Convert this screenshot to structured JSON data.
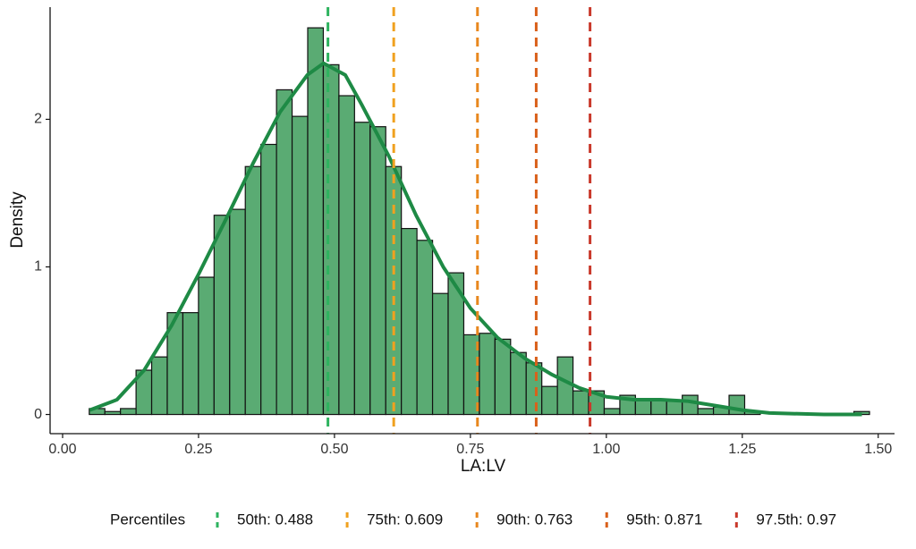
{
  "chart_data": {
    "type": "histogram",
    "x_label": "LA:LV",
    "y_label": "Density",
    "color": "#5aab73",
    "edge_color": "#111111",
    "bins": [
      0.049,
      0.0777,
      0.1064,
      0.1351,
      0.1638,
      0.1925,
      0.2212,
      0.2499,
      0.2786,
      0.3073,
      0.336,
      0.3647,
      0.3934,
      0.4221,
      0.4508,
      0.4795,
      0.5082,
      0.5369,
      0.5656,
      0.5943,
      0.623,
      0.6517,
      0.6804,
      0.7091,
      0.7378,
      0.7665,
      0.7952,
      0.8239,
      0.8526,
      0.8813,
      0.91,
      0.9387,
      0.9674,
      0.9961,
      1.0248,
      1.0535,
      1.0822,
      1.1109,
      1.1396,
      1.1683,
      1.197,
      1.2257,
      1.2544,
      1.2831,
      1.3118,
      1.3405,
      1.3692,
      1.3979,
      1.4266,
      1.4553,
      1.484
    ],
    "values": [
      0.04,
      0.02,
      0.04,
      0.3,
      0.39,
      0.69,
      0.69,
      0.93,
      1.35,
      1.39,
      1.68,
      1.83,
      2.2,
      2.02,
      2.62,
      2.37,
      2.16,
      1.98,
      1.95,
      1.68,
      1.26,
      1.18,
      0.82,
      0.96,
      0.54,
      0.55,
      0.51,
      0.42,
      0.35,
      0.19,
      0.39,
      0.16,
      0.16,
      0.04,
      0.13,
      0.1,
      0.1,
      0.09,
      0.13,
      0.04,
      0.05,
      0.13,
      0.02,
      0,
      0,
      0,
      0,
      0,
      0,
      0.02
    ],
    "density_curve": {
      "color": "#1e8a45",
      "x": [
        0.05,
        0.1,
        0.15,
        0.2,
        0.25,
        0.3,
        0.35,
        0.4,
        0.45,
        0.48,
        0.52,
        0.55,
        0.6,
        0.65,
        0.7,
        0.75,
        0.8,
        0.85,
        0.9,
        0.95,
        1.0,
        1.05,
        1.1,
        1.15,
        1.2,
        1.25,
        1.3,
        1.4,
        1.47
      ],
      "y": [
        0.03,
        0.1,
        0.3,
        0.6,
        0.95,
        1.32,
        1.7,
        2.05,
        2.3,
        2.38,
        2.3,
        2.1,
        1.75,
        1.35,
        1.0,
        0.72,
        0.52,
        0.38,
        0.27,
        0.18,
        0.12,
        0.1,
        0.1,
        0.09,
        0.06,
        0.03,
        0.01,
        0.0,
        0.0
      ]
    },
    "percentiles_title": "Percentiles",
    "percentiles": [
      {
        "label": "50th: 0.488",
        "value": 0.488,
        "color": "#2eb35f"
      },
      {
        "label": "75th: 0.609",
        "value": 0.609,
        "color": "#f0a11f"
      },
      {
        "label": "90th: 0.763",
        "value": 0.763,
        "color": "#e8871e"
      },
      {
        "label": "95th: 0.871",
        "value": 0.871,
        "color": "#d9601a"
      },
      {
        "label": "97.5th: 0.97",
        "value": 0.97,
        "color": "#c9392b"
      }
    ],
    "xlim": [
      -0.023,
      1.53
    ],
    "ylim": [
      -0.13,
      2.76
    ],
    "xticks": [
      {
        "value": 0,
        "label": "0.00"
      },
      {
        "value": 0.25,
        "label": "0.25"
      },
      {
        "value": 0.5,
        "label": "0.50"
      },
      {
        "value": 0.75,
        "label": "0.75"
      },
      {
        "value": 1,
        "label": "1.00"
      },
      {
        "value": 1.25,
        "label": "1.25"
      },
      {
        "value": 1.5,
        "label": "1.50"
      }
    ],
    "yticks": [
      0,
      1,
      2
    ]
  }
}
